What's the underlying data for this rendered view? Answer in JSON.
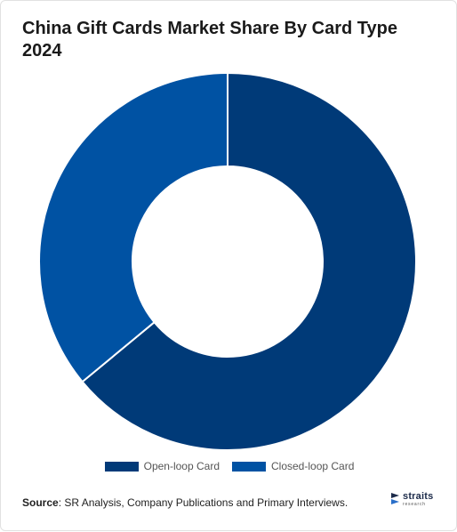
{
  "title": "China Gift Cards Market Share By Card Type 2024",
  "chart_data": {
    "type": "pie",
    "variant": "donut",
    "categories": [
      "Open-loop Card",
      "Closed-loop Card"
    ],
    "values": [
      64,
      36
    ],
    "colors": [
      "#003a78",
      "#0052a3"
    ],
    "legend": "bottom"
  },
  "source": {
    "label": "Source",
    "text": "SR Analysis, Company Publications and Primary Interviews."
  },
  "logo": {
    "name": "straits",
    "sub": "research",
    "icon": "straits-logo-icon"
  }
}
